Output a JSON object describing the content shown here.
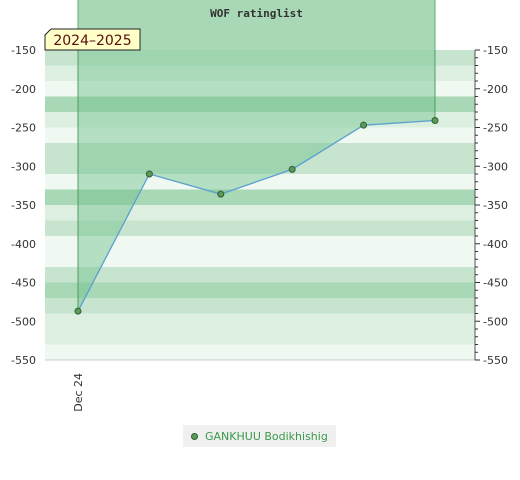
{
  "chart_data": {
    "type": "line",
    "title": "WOF ratinglist",
    "season_label": "2024–2025",
    "x": [
      "Dec 24",
      "",
      "",
      "",
      "",
      ""
    ],
    "x_ticks": [
      "Dec 24"
    ],
    "series": [
      {
        "name": "GANKHUU Bodikhishig",
        "values": [
          -487,
          -310,
          -336,
          -304,
          -247,
          -241
        ]
      }
    ],
    "ylim": [
      -550,
      -150
    ],
    "yticks": [
      -150,
      -200,
      -250,
      -300,
      -350,
      -400,
      -450,
      -500,
      -550
    ],
    "area_fill_color": "#6cc08a",
    "line_color": "#5aa0d0",
    "marker_color": "#5a9a5a",
    "band_colors": [
      "#c7e4cf",
      "#dcefe1",
      "#f0f8f2",
      "#a9d8b6"
    ],
    "legend_position": "bottom-center",
    "grid": false
  }
}
